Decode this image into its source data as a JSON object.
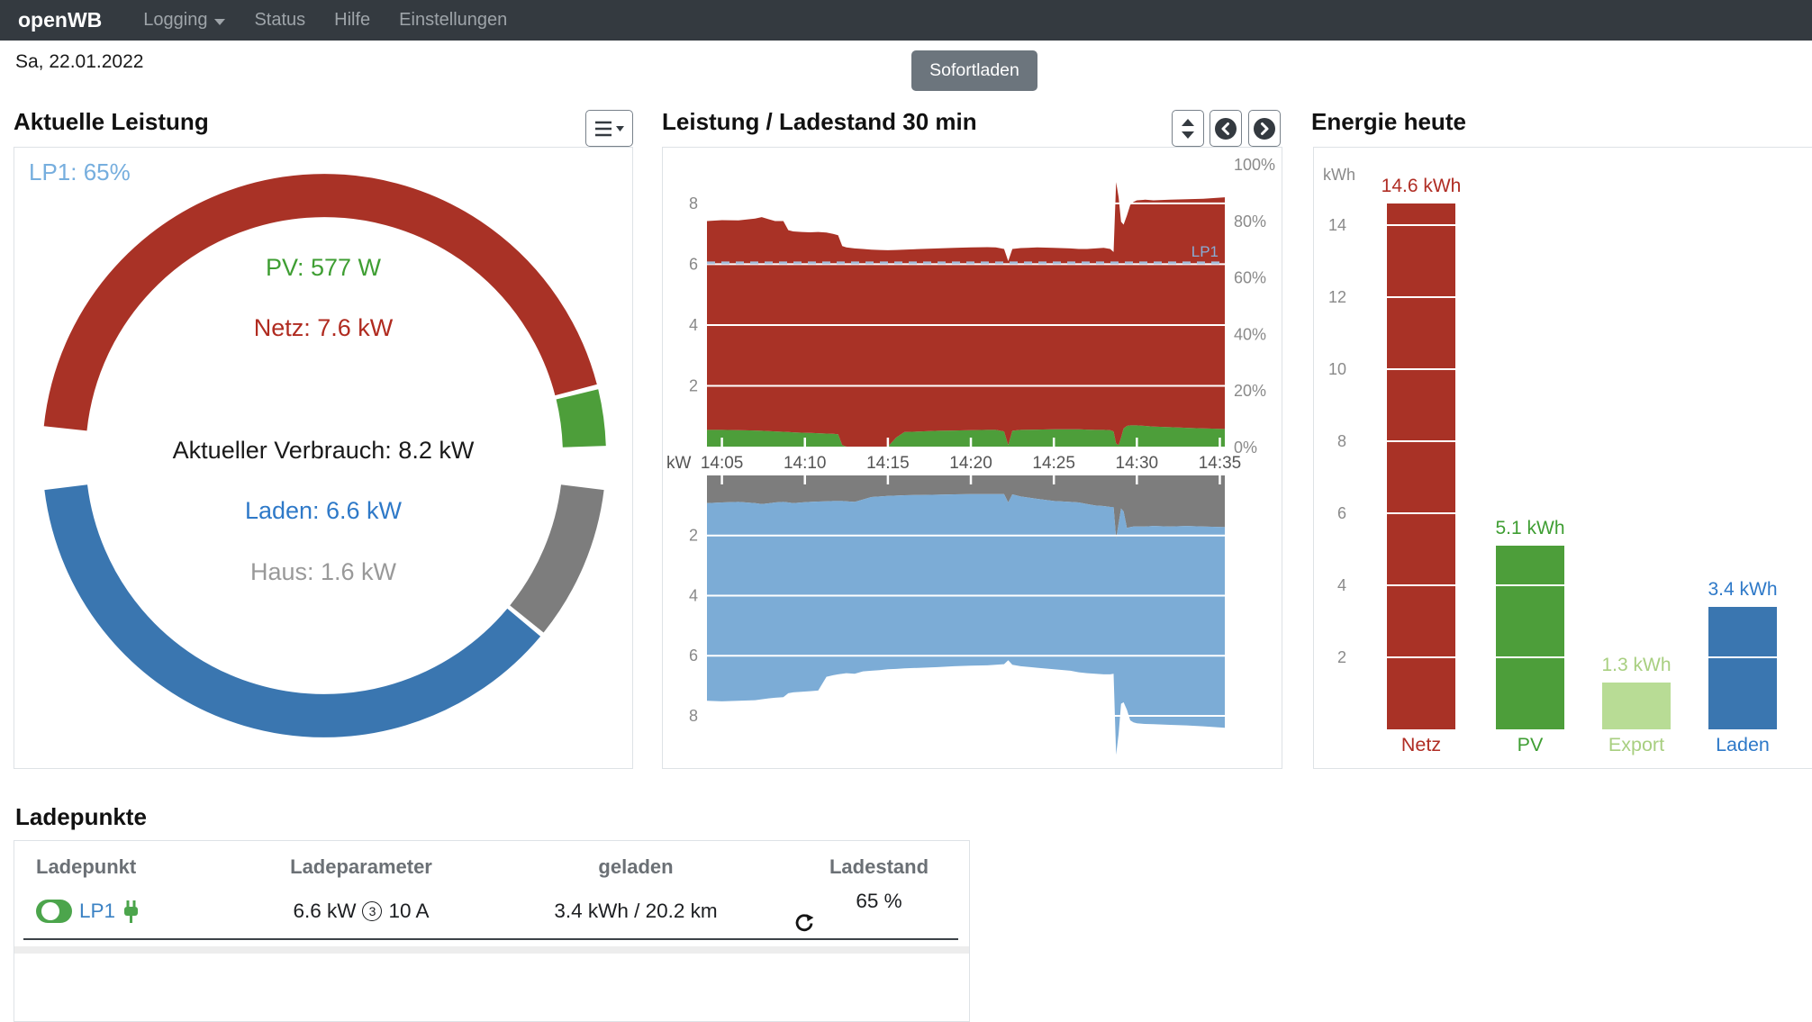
{
  "navbar": {
    "brand": "openWB",
    "items": [
      {
        "label": "Logging",
        "caret": true
      },
      {
        "label": "Status",
        "caret": false
      },
      {
        "label": "Hilfe",
        "caret": false
      },
      {
        "label": "Einstellungen",
        "caret": false
      }
    ]
  },
  "header": {
    "date": "Sa, 22.01.2022",
    "sofortladen": "Sofortladen"
  },
  "panel_titles": {
    "left": "Aktuelle Leistung",
    "middle": "Leistung / Ladestand 30 min",
    "right": "Energie heute"
  },
  "colors": {
    "netz_red": "#a93226",
    "pv_green": "#4d9e3a",
    "export_lightgreen": "#b8dc95",
    "laden_blue": "#3a76b0",
    "area_blue": "#7cacd6",
    "haus_gray": "#7d7d7d",
    "navbar_bg": "#343a40",
    "button_gray": "#6c757d"
  },
  "chart_data": [
    {
      "type": "donut-gauge",
      "title": "Aktuelle Leistung",
      "badge": "LP1: 65%",
      "center_labels": [
        {
          "text": "PV: 577 W",
          "color": "#3f9e33"
        },
        {
          "text": "Netz: 7.6 kW",
          "color": "#b02b20"
        },
        {
          "text": "Aktueller Verbrauch: 8.2 kW",
          "color": "#1a1a1a"
        },
        {
          "text": "Laden: 6.6 kW",
          "color": "#2e79c8"
        },
        {
          "text": "Haus: 1.6 kW",
          "color": "#999999"
        }
      ],
      "top_arc": {
        "start_deg": 174,
        "end_deg": 2,
        "segments": [
          {
            "name": "Netz",
            "value": 7.6,
            "color": "#a93226"
          },
          {
            "name": "PV",
            "value": 0.577,
            "color": "#4d9e3a"
          }
        ]
      },
      "bottom_arc": {
        "start_deg": 187,
        "end_deg": 353,
        "segments": [
          {
            "name": "Laden",
            "value": 6.6,
            "color": "#3a76b0"
          },
          {
            "name": "Haus",
            "value": 1.6,
            "color": "#7d7d7d"
          }
        ]
      }
    },
    {
      "type": "area",
      "title": "Leistung / Ladestand 30 min",
      "x_unit_label": "kW",
      "x_ticks": [
        "14:05",
        "14:10",
        "14:15",
        "14:20",
        "14:25",
        "14:30",
        "14:35"
      ],
      "x_tick_minutes": [
        5,
        10,
        15,
        20,
        25,
        30,
        35
      ],
      "x_range_minutes": [
        4.1,
        35.3
      ],
      "x_minutes": [
        4.1,
        5,
        6,
        7,
        7.4,
        7.8,
        8.2,
        8.7,
        9,
        9.3,
        9.8,
        10.3,
        10.8,
        11.3,
        11.7,
        12,
        12.25,
        12.5,
        13,
        13.5,
        14,
        14.5,
        15,
        15.5,
        16,
        17,
        18,
        19,
        20,
        21,
        21.5,
        22,
        22.25,
        22.5,
        23,
        24,
        25,
        26,
        26.5,
        27,
        27.5,
        28,
        28.4,
        28.6,
        28.75,
        28.9,
        29.05,
        29.2,
        29.4,
        29.6,
        29.8,
        30,
        30.5,
        31,
        32,
        33,
        34,
        35.3
      ],
      "top_plot": {
        "ylim": [
          0,
          9.3
        ],
        "yticks": [
          2,
          4,
          6,
          8
        ],
        "series": [
          {
            "name": "PV",
            "color": "#4d9e3a",
            "y": [
              0.55,
              0.55,
              0.54,
              0.53,
              0.52,
              0.51,
              0.5,
              0.49,
              0.48,
              0.47,
              0.46,
              0.45,
              0.44,
              0.43,
              0.42,
              0.41,
              0.05,
              0,
              0,
              0,
              0,
              0,
              0,
              0.3,
              0.48,
              0.5,
              0.52,
              0.53,
              0.54,
              0.55,
              0.55,
              0.5,
              0.05,
              0.52,
              0.55,
              0.56,
              0.57,
              0.57,
              0.57,
              0.56,
              0.55,
              0.55,
              0.54,
              0.5,
              0.1,
              0.05,
              0.3,
              0.6,
              0.68,
              0.7,
              0.7,
              0.7,
              0.68,
              0.66,
              0.64,
              0.62,
              0.6,
              0.58
            ]
          },
          {
            "name": "Netz+PV gesamt",
            "color": "#a93226",
            "y": [
              7.42,
              7.45,
              7.44,
              7.5,
              7.55,
              7.48,
              7.42,
              7.42,
              7.12,
              7.08,
              7.06,
              7.05,
              7.06,
              7.04,
              7,
              6.95,
              6.6,
              6.55,
              6.52,
              6.5,
              6.48,
              6.47,
              6.46,
              6.47,
              6.48,
              6.5,
              6.52,
              6.54,
              6.55,
              6.56,
              6.55,
              6.5,
              6.1,
              6.5,
              6.53,
              6.55,
              6.54,
              6.52,
              6.5,
              6.5,
              6.52,
              6.54,
              6.5,
              6.4,
              8.7,
              8.2,
              7.4,
              7.3,
              7.6,
              7.95,
              8.05,
              8.1,
              8.12,
              8.1,
              8.12,
              8.14,
              8.15,
              8.2
            ]
          }
        ],
        "soc_line": {
          "label": "LP1",
          "percent": 65,
          "color": "#a6bcd8"
        }
      },
      "right_axis": {
        "labels": [
          "100%",
          "80%",
          "60%",
          "40%",
          "20%",
          "0%"
        ],
        "percents": [
          100,
          80,
          60,
          40,
          20,
          0
        ]
      },
      "bottom_plot": {
        "ylim": [
          0,
          9.5
        ],
        "yticks": [
          2,
          4,
          6,
          8
        ],
        "series": [
          {
            "name": "Haus",
            "color": "#7d7d7d",
            "y": [
              0.92,
              0.9,
              0.88,
              0.92,
              0.95,
              0.93,
              0.9,
              0.88,
              0.9,
              0.92,
              0.9,
              0.88,
              0.87,
              0.86,
              0.85,
              0.85,
              0.85,
              0.86,
              0.88,
              0.8,
              0.72,
              0.7,
              0.68,
              0.67,
              0.66,
              0.65,
              0.64,
              0.63,
              0.62,
              0.62,
              0.62,
              0.62,
              0.9,
              0.63,
              0.7,
              0.78,
              0.85,
              0.88,
              0.9,
              0.95,
              1,
              1.02,
              1.05,
              1.05,
              2.1,
              1.6,
              1.1,
              1.2,
              1.75,
              1.72,
              1.7,
              1.7,
              1.7,
              1.68,
              1.7,
              1.68,
              1.7,
              1.72
            ]
          },
          {
            "name": "Laden+Haus gesamt",
            "color": "#7cacd6",
            "y": [
              7.5,
              7.52,
              7.5,
              7.48,
              7.45,
              7.42,
              7.4,
              7.38,
              7.25,
              7.22,
              7.2,
              7.18,
              7.16,
              6.7,
              6.65,
              6.62,
              6.6,
              6.58,
              6.6,
              6.52,
              6.5,
              6.48,
              6.45,
              6.44,
              6.42,
              6.4,
              6.38,
              6.35,
              6.33,
              6.32,
              6.3,
              6.28,
              6.15,
              6.3,
              6.35,
              6.4,
              6.45,
              6.5,
              6.55,
              6.58,
              6.6,
              6.62,
              6.62,
              6.6,
              9.3,
              8.6,
              7.6,
              7.55,
              7.8,
              8.15,
              8.22,
              8.25,
              8.27,
              8.28,
              8.3,
              8.32,
              8.35,
              8.4
            ]
          }
        ]
      }
    },
    {
      "type": "bar",
      "title": "Energie heute",
      "ylabel": "kWh",
      "yticks": [
        2,
        4,
        6,
        8,
        10,
        12,
        14
      ],
      "grid_step": 2,
      "categories": [
        "Netz",
        "PV",
        "Export",
        "Laden"
      ],
      "values": [
        14.6,
        5.1,
        1.3,
        3.4
      ],
      "value_labels": [
        "14.6 kWh",
        "5.1 kWh",
        "1.3 kWh",
        "3.4 kWh"
      ],
      "bar_colors": [
        "#a93226",
        "#4d9e3a",
        "#b8dc95",
        "#3a76b0"
      ],
      "label_colors": [
        "#b02d24",
        "#3f9e33",
        "#a8cf80",
        "#2e79c8"
      ]
    }
  ],
  "ladepunkte": {
    "title": "Ladepunkte",
    "columns": [
      "Ladepunkt",
      "Ladeparameter",
      "geladen",
      "Ladestand"
    ],
    "row": {
      "name": "LP1",
      "power": "6.6 kW",
      "phases": "3",
      "current": "10 A",
      "charged": "3.4 kWh / 20.2 km",
      "soc": "65 %"
    }
  }
}
